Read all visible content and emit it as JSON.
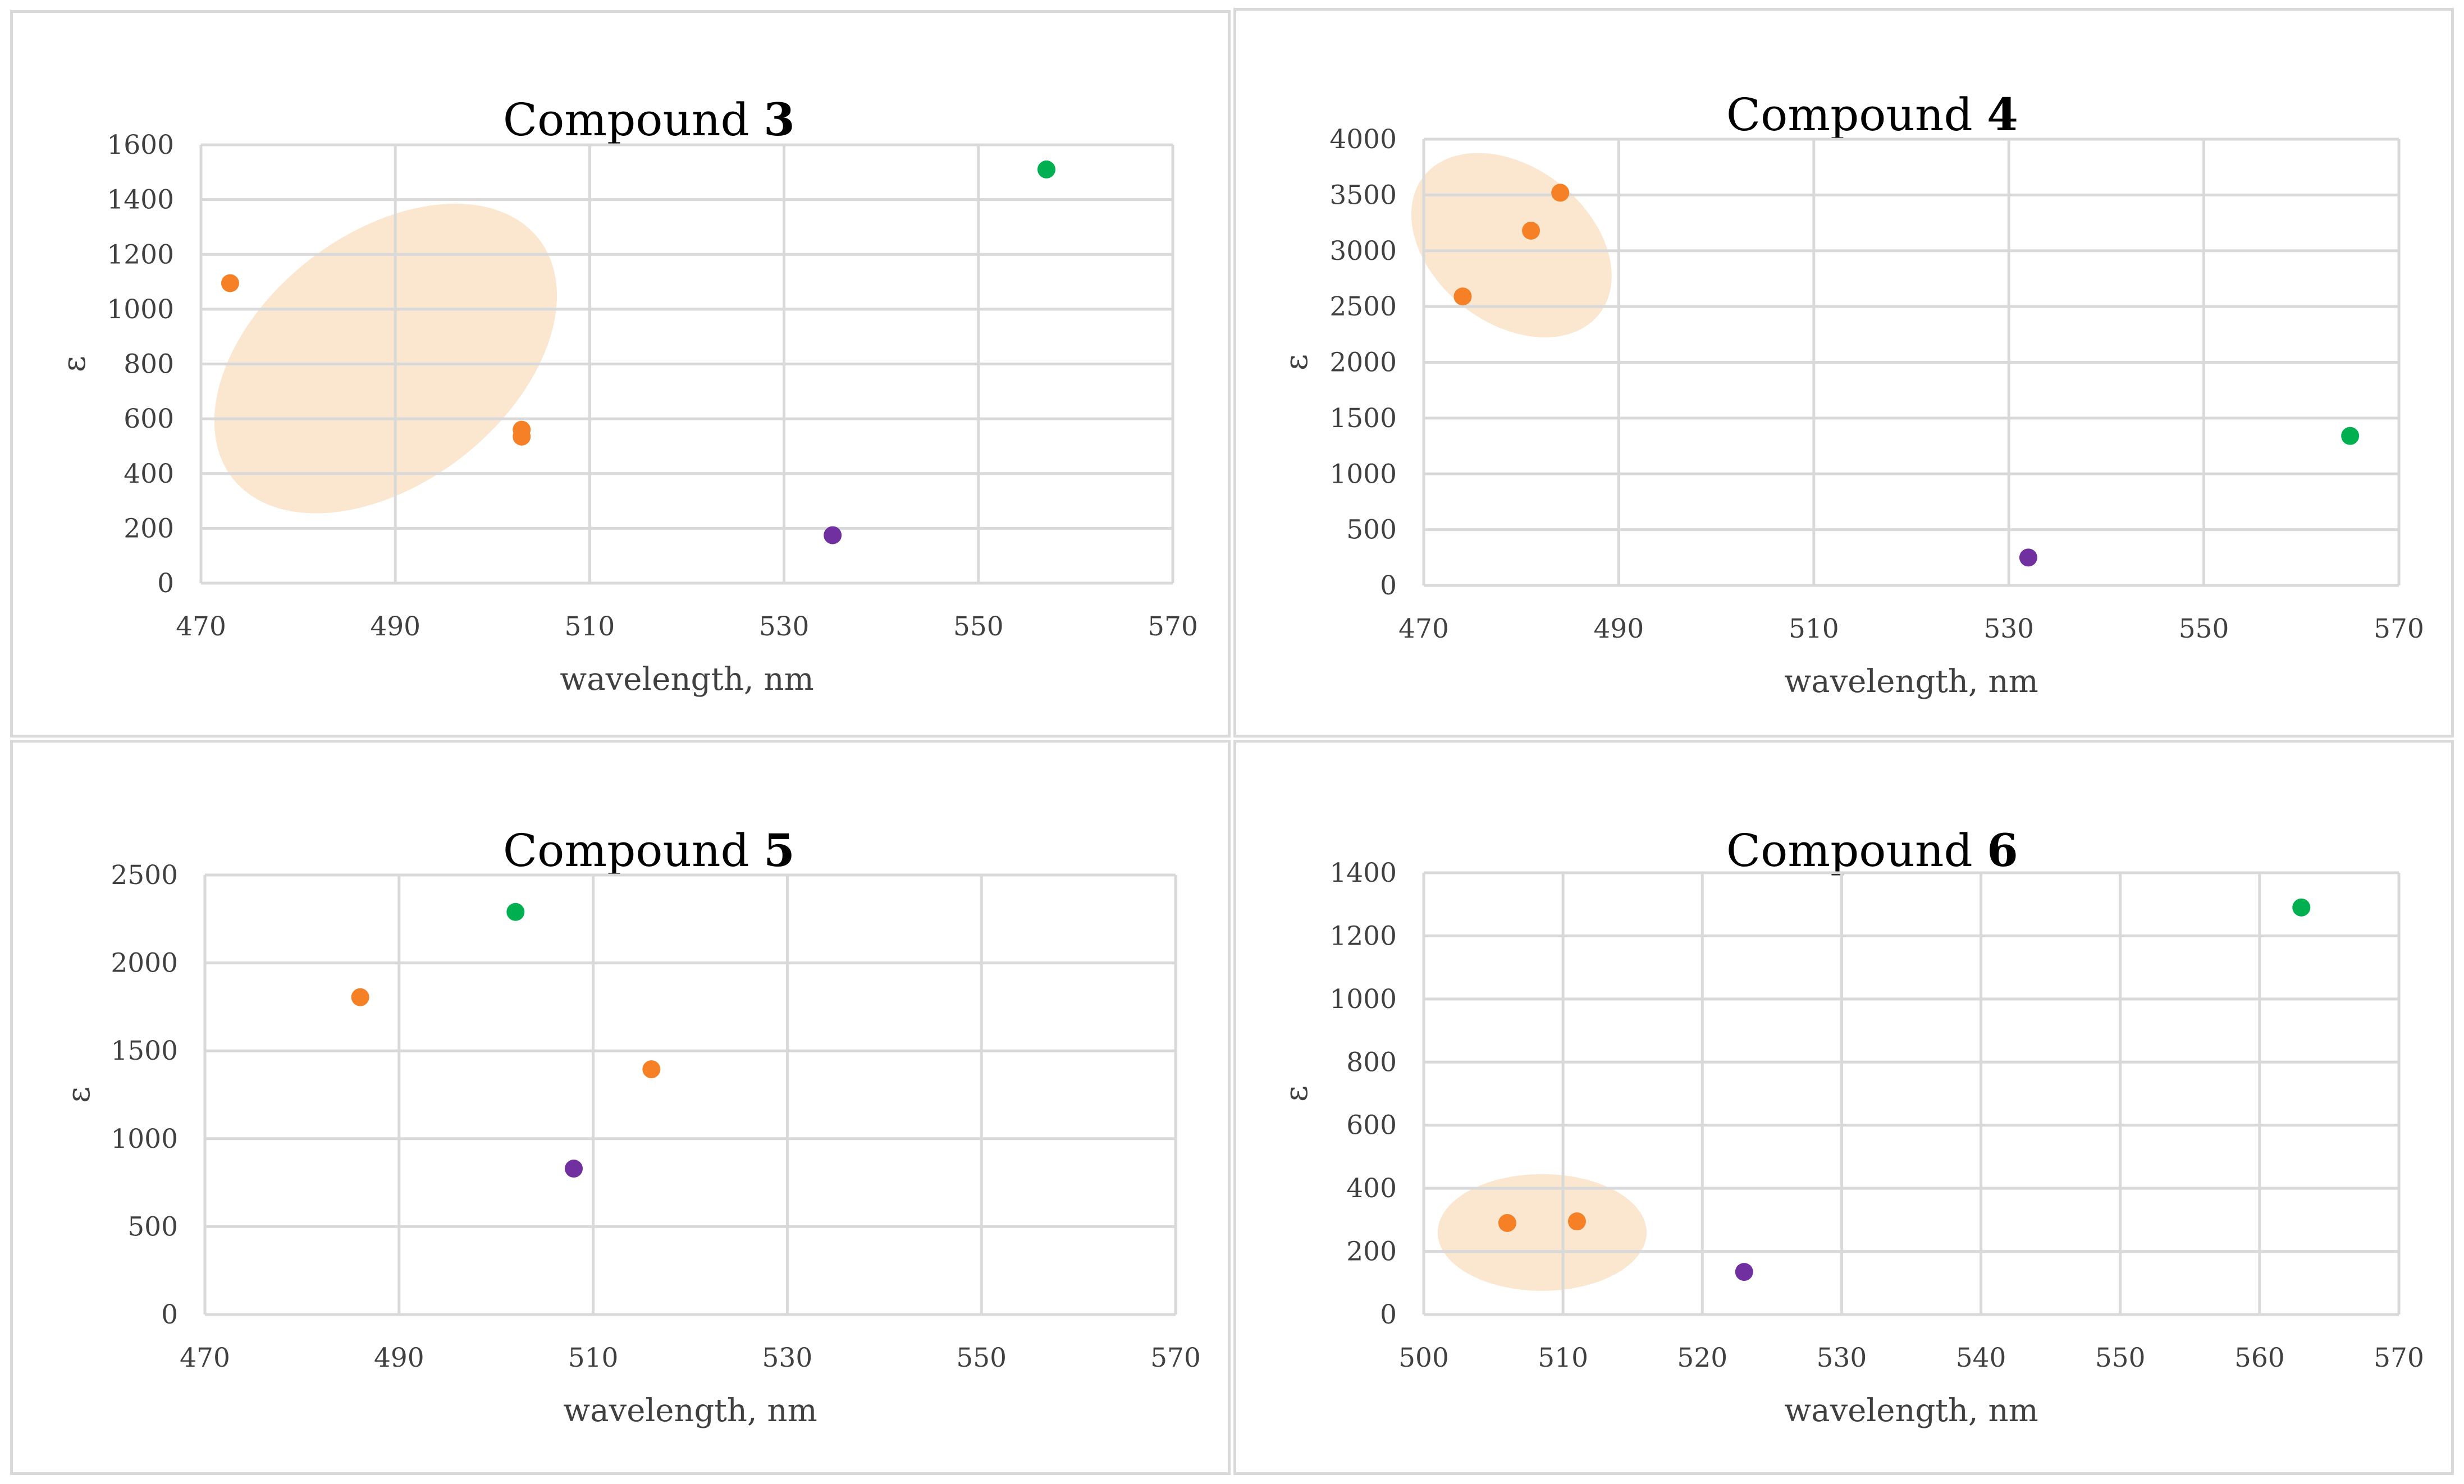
{
  "colors": {
    "orange": "#F58025",
    "green": "#00B050",
    "purple": "#7030A0",
    "highlight": "#FBE5CC",
    "grid": "#D9D9D9"
  },
  "chart_data": [
    {
      "type": "scatter",
      "title": "Compound 3",
      "title_prefix": "Compound",
      "title_number": "3",
      "xlabel": "wavelength, nm",
      "ylabel": "ε",
      "xlim": [
        470,
        570
      ],
      "ylim": [
        0,
        1600
      ],
      "xticks": [
        470,
        490,
        510,
        530,
        550,
        570
      ],
      "yticks": [
        0,
        200,
        400,
        600,
        800,
        1000,
        1200,
        1400,
        1600
      ],
      "series": [
        {
          "name": "orange",
          "color": "#F58025",
          "points": [
            [
              473,
              1095
            ],
            [
              503,
              560
            ],
            [
              503,
              535
            ]
          ]
        },
        {
          "name": "purple",
          "color": "#7030A0",
          "points": [
            [
              535,
              175
            ]
          ]
        },
        {
          "name": "green",
          "color": "#00B050",
          "points": [
            [
              557,
              1510
            ]
          ]
        }
      ],
      "highlight": {
        "center": [
          489,
          820
        ],
        "rx": 20,
        "ry": 455,
        "angle": -38
      }
    },
    {
      "type": "scatter",
      "title": "Compound 4",
      "title_prefix": "Compound",
      "title_number": "4",
      "xlabel": "wavelength, nm",
      "ylabel": "ε",
      "xlim": [
        470,
        570
      ],
      "ylim": [
        0,
        4000
      ],
      "xticks": [
        470,
        490,
        510,
        530,
        550,
        570
      ],
      "yticks": [
        0,
        500,
        1000,
        1500,
        2000,
        2500,
        3000,
        3500,
        4000
      ],
      "series": [
        {
          "name": "orange",
          "color": "#F58025",
          "points": [
            [
              474,
              2590
            ],
            [
              481,
              3180
            ],
            [
              484,
              3520
            ]
          ]
        },
        {
          "name": "purple",
          "color": "#7030A0",
          "points": [
            [
              532,
              250
            ]
          ]
        },
        {
          "name": "green",
          "color": "#00B050",
          "points": [
            [
              565,
              1340
            ]
          ]
        }
      ],
      "highlight": {
        "center": [
          479,
          3050
        ],
        "rx": 8,
        "ry": 1000,
        "angle": -52
      }
    },
    {
      "type": "scatter",
      "title": "Compound 5",
      "title_prefix": "Compound",
      "title_number": "5",
      "xlabel": "wavelength, nm",
      "ylabel": "ε",
      "xlim": [
        470,
        570
      ],
      "ylim": [
        0,
        2500
      ],
      "xticks": [
        470,
        490,
        510,
        530,
        550,
        570
      ],
      "yticks": [
        0,
        500,
        1000,
        1500,
        2000,
        2500
      ],
      "series": [
        {
          "name": "orange",
          "color": "#F58025",
          "points": [
            [
              486,
              1805
            ],
            [
              516,
              1395
            ]
          ]
        },
        {
          "name": "purple",
          "color": "#7030A0",
          "points": [
            [
              508,
              830
            ]
          ]
        },
        {
          "name": "green",
          "color": "#00B050",
          "points": [
            [
              502,
              2290
            ]
          ]
        }
      ],
      "highlight": null
    },
    {
      "type": "scatter",
      "title": "Compound 6",
      "title_prefix": "Compound",
      "title_number": "6",
      "xlabel": "wavelength, nm",
      "ylabel": "ε",
      "xlim": [
        500,
        570
      ],
      "ylim": [
        0,
        1400
      ],
      "xticks": [
        500,
        510,
        520,
        530,
        540,
        550,
        560,
        570
      ],
      "yticks": [
        0,
        200,
        400,
        600,
        800,
        1000,
        1200,
        1400
      ],
      "series": [
        {
          "name": "orange",
          "color": "#F58025",
          "points": [
            [
              506,
              290
            ],
            [
              511,
              295
            ]
          ]
        },
        {
          "name": "purple",
          "color": "#7030A0",
          "points": [
            [
              523,
              135
            ]
          ]
        },
        {
          "name": "green",
          "color": "#00B050",
          "points": [
            [
              563,
              1290
            ]
          ]
        }
      ],
      "highlight": {
        "center": [
          508.5,
          260
        ],
        "rx": 7.5,
        "ry": 185,
        "angle": 0
      }
    }
  ]
}
